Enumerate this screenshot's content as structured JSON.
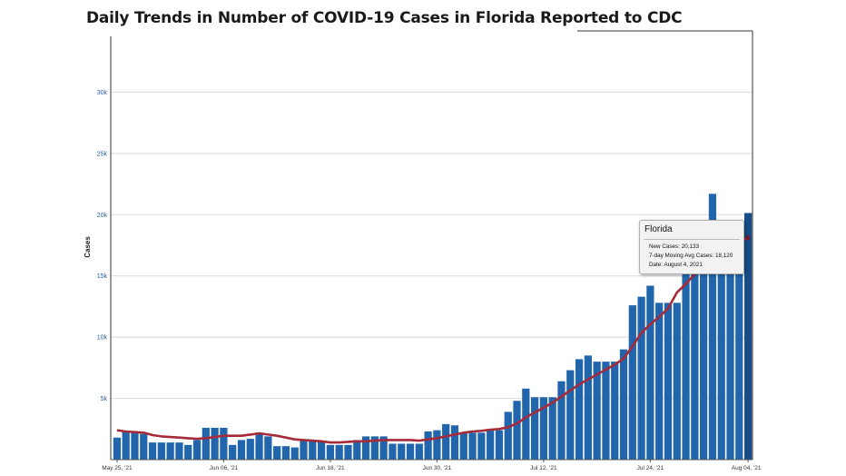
{
  "chart_data": {
    "type": "bar",
    "title": "Daily Trends in Number of COVID-19 Cases in Florida Reported to CDC",
    "ylabel": "Cases",
    "xlabel": "",
    "ylim": [
      0,
      35000
    ],
    "yticks": [
      5000,
      10000,
      15000,
      20000,
      25000,
      30000
    ],
    "ytick_labels": [
      "5k",
      "10k",
      "15k",
      "20k",
      "25k",
      "30k"
    ],
    "xtick_labels": [
      "May 25, '21",
      "Jun 06, '21",
      "Jun 18, '21",
      "Jun 30, '21",
      "Jul 12, '21",
      "Jul 24, '21",
      "Aug 04, '21"
    ],
    "xtick_indices": [
      0,
      12,
      24,
      36,
      48,
      60,
      71
    ],
    "start_date": "2021-05-25",
    "series": [
      {
        "kind": "bar",
        "color": "#2166ac",
        "values": [
          1800,
          2300,
          2300,
          2100,
          1400,
          1400,
          1400,
          1400,
          1200,
          1600,
          2600,
          2600,
          2600,
          1200,
          1600,
          1700,
          2100,
          1900,
          1100,
          1100,
          1000,
          1600,
          1600,
          1500,
          1200,
          1200,
          1200,
          1600,
          1900,
          1900,
          1900,
          1300,
          1300,
          1300,
          1300,
          2300,
          2400,
          2900,
          2800,
          2200,
          2200,
          2200,
          2400,
          2400,
          3900,
          4800,
          5800,
          5100,
          5100,
          5100,
          6400,
          7300,
          8200,
          8500,
          8000,
          8000,
          8000,
          9000,
          12600,
          13300,
          14200,
          12800,
          12800,
          12800,
          15600,
          15700,
          15800,
          21700,
          18500,
          18000,
          17900,
          20133
        ]
      },
      {
        "kind": "line",
        "color": "#a52a3a",
        "values": [
          2400,
          2300,
          2250,
          2200,
          2000,
          1900,
          1850,
          1800,
          1750,
          1700,
          1750,
          1850,
          1950,
          1950,
          1950,
          2050,
          2150,
          2050,
          1950,
          1800,
          1650,
          1600,
          1550,
          1500,
          1400,
          1400,
          1450,
          1500,
          1500,
          1550,
          1600,
          1600,
          1600,
          1600,
          1550,
          1650,
          1750,
          1900,
          2050,
          2200,
          2300,
          2350,
          2450,
          2500,
          2650,
          2950,
          3450,
          3850,
          4250,
          4650,
          5150,
          5650,
          6150,
          6550,
          6950,
          7350,
          7750,
          8250,
          9250,
          10350,
          11050,
          11650,
          12350,
          13650,
          14350,
          15150,
          15550,
          16350,
          16850,
          17350,
          17750,
          18120
        ]
      }
    ],
    "tooltip": {
      "title": "Florida",
      "lines": [
        "New Cases: 20,133",
        "7-day Moving Avg Cases: 18,120",
        "Date: August 4, 2021"
      ]
    }
  }
}
